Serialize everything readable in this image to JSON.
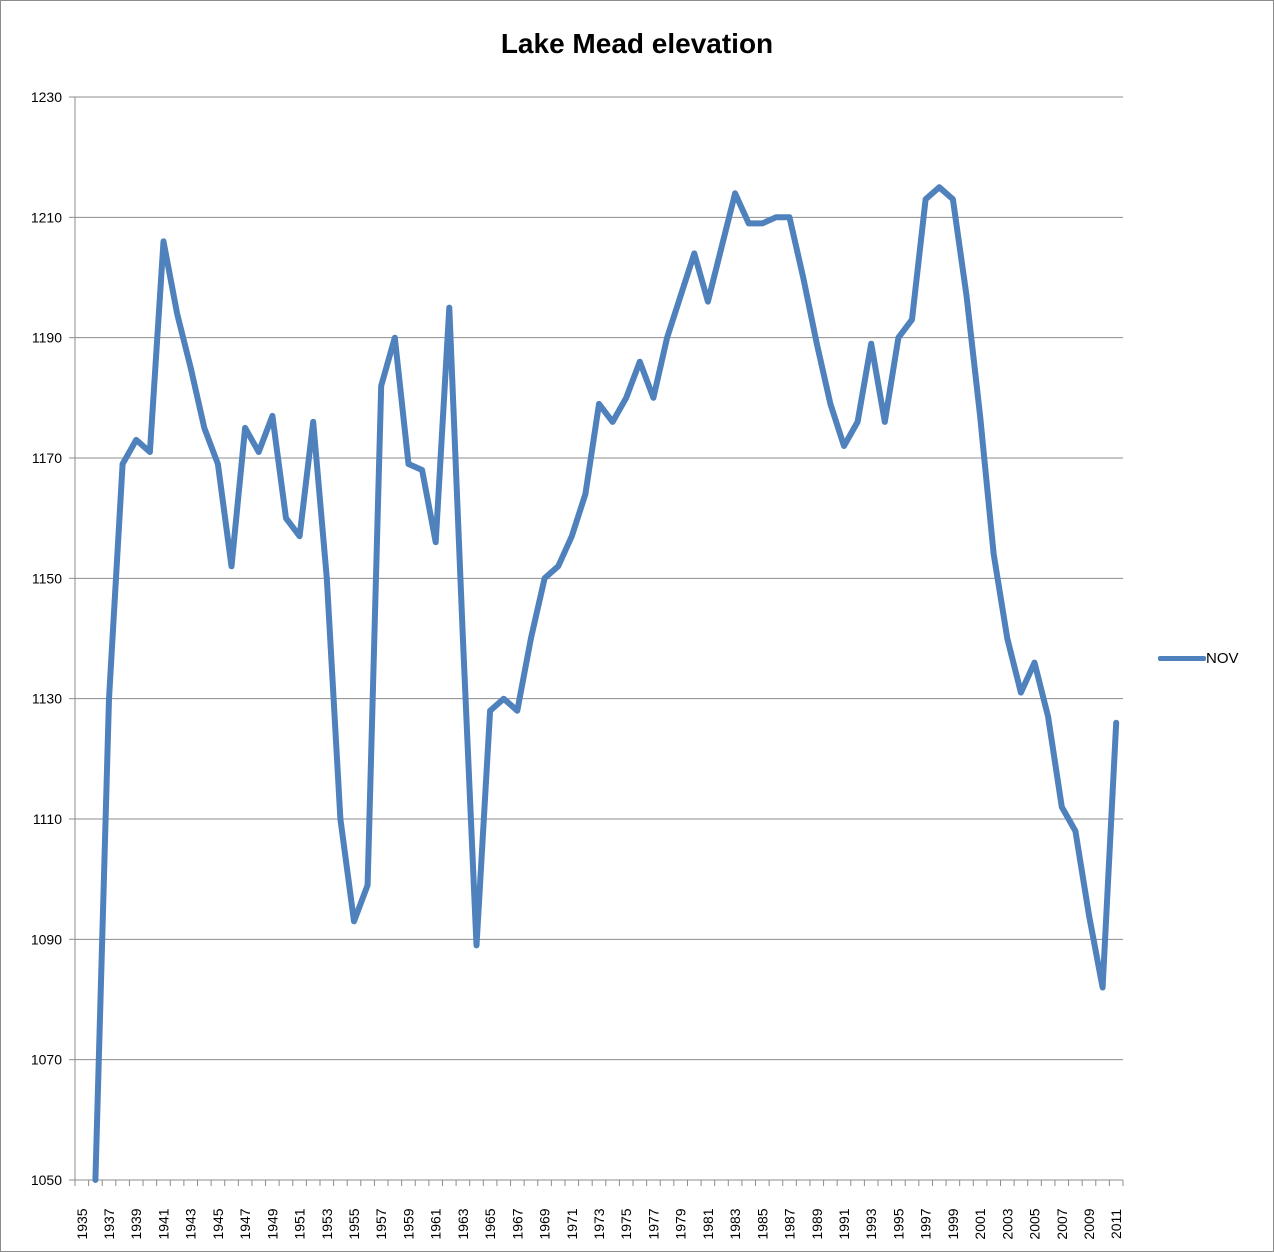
{
  "chart_data": {
    "type": "line",
    "title": "Lake Mead elevation",
    "xlabel": "",
    "ylabel": "",
    "ylim": [
      1050,
      1230
    ],
    "yticks": [
      1050,
      1070,
      1090,
      1110,
      1130,
      1150,
      1170,
      1190,
      1210,
      1230
    ],
    "xlim": [
      1935,
      2011
    ],
    "xtick_labels": [
      "1935",
      "1937",
      "1939",
      "1941",
      "1943",
      "1945",
      "1947",
      "1949",
      "1951",
      "1953",
      "1955",
      "1957",
      "1959",
      "1961",
      "1963",
      "1965",
      "1967",
      "1969",
      "1971",
      "1973",
      "1975",
      "1977",
      "1979",
      "1981",
      "1983",
      "1985",
      "1987",
      "1989",
      "1991",
      "1993",
      "1995",
      "1997",
      "1999",
      "2001",
      "2003",
      "2005",
      "2007",
      "2009",
      "2011"
    ],
    "grid": "horizontal",
    "legend_position": "right",
    "color": "#4f81bd",
    "series": [
      {
        "name": "NOV",
        "x": [
          1936,
          1937,
          1938,
          1939,
          1940,
          1941,
          1942,
          1943,
          1944,
          1945,
          1946,
          1947,
          1948,
          1949,
          1950,
          1951,
          1952,
          1953,
          1954,
          1955,
          1956,
          1957,
          1958,
          1959,
          1960,
          1961,
          1962,
          1963,
          1964,
          1965,
          1966,
          1967,
          1968,
          1969,
          1970,
          1971,
          1972,
          1973,
          1974,
          1975,
          1976,
          1977,
          1978,
          1979,
          1980,
          1981,
          1982,
          1983,
          1984,
          1985,
          1986,
          1987,
          1988,
          1989,
          1990,
          1991,
          1992,
          1993,
          1994,
          1995,
          1996,
          1997,
          1998,
          1999,
          2000,
          2001,
          2002,
          2003,
          2004,
          2005,
          2006,
          2007,
          2008,
          2009,
          2010,
          2011
        ],
        "values": [
          1050,
          1130,
          1169,
          1173,
          1171,
          1206,
          1194,
          1185,
          1175,
          1169,
          1152,
          1175,
          1171,
          1177,
          1160,
          1157,
          1176,
          1150,
          1110,
          1093,
          1099,
          1182,
          1190,
          1169,
          1168,
          1156,
          1195,
          1140,
          1089,
          1128,
          1130,
          1128,
          1140,
          1150,
          1152,
          1157,
          1164,
          1179,
          1176,
          1180,
          1186,
          1180,
          1190,
          1197,
          1204,
          1196,
          1205,
          1214,
          1209,
          1209,
          1210,
          1210,
          1200,
          1189,
          1179,
          1172,
          1176,
          1189,
          1176,
          1190,
          1193,
          1213,
          1215,
          1213,
          1197,
          1177,
          1154,
          1140,
          1131,
          1136,
          1127,
          1112,
          1108,
          1094,
          1082,
          1126
        ]
      }
    ]
  }
}
